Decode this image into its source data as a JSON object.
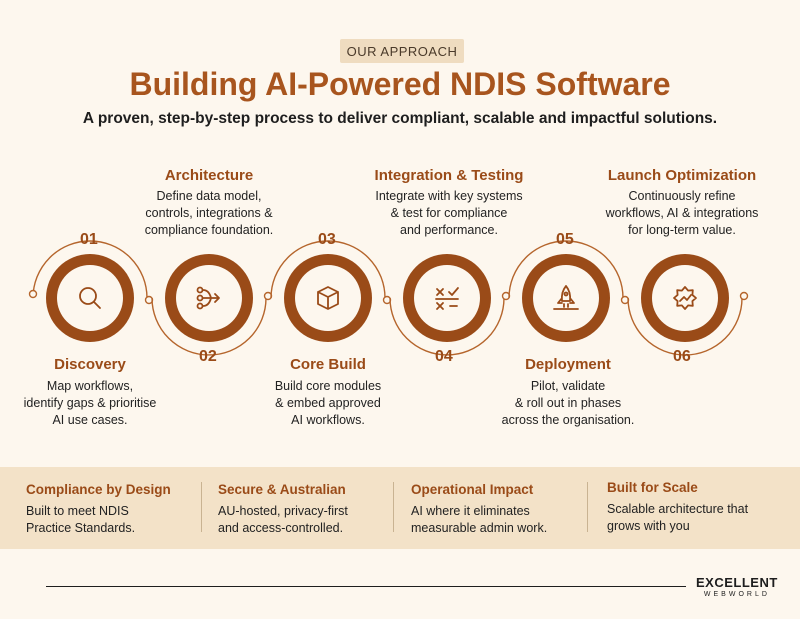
{
  "header": {
    "badge": "OUR APPROACH",
    "title": "Building AI-Powered NDIS Software",
    "subtitle": "A proven, step-by-step process to deliver compliant, scalable and impactful solutions."
  },
  "steps": [
    {
      "number": "01",
      "title": "Discovery",
      "desc": "Map workflows,\nidentify gaps & prioritise\nAI use cases.",
      "icon": "search-icon"
    },
    {
      "number": "02",
      "title": "Architecture",
      "desc": "Define data model,\ncontrols, integrations &\ncompliance foundation.",
      "icon": "flow-arrow-icon"
    },
    {
      "number": "03",
      "title": "Core Build",
      "desc": "Build core modules\n& embed approved\nAI workflows.",
      "icon": "box-icon"
    },
    {
      "number": "04",
      "title": "Integration & Testing",
      "desc": "Integrate with key systems\n& test for compliance\nand performance.",
      "icon": "test-checklist-icon"
    },
    {
      "number": "05",
      "title": "Deployment",
      "desc": "Pilot, validate\n& roll out in phases\nacross the organisation.",
      "icon": "rocket-icon"
    },
    {
      "number": "06",
      "title": "Launch Optimization",
      "desc": "Continuously refine\nworkflows, AI & integrations\nfor long-term value.",
      "icon": "optimization-gear-icon"
    }
  ],
  "features": [
    {
      "title": "Compliance by Design",
      "desc": "Built to meet NDIS\nPractice Standards."
    },
    {
      "title": "Secure & Australian",
      "desc": "AU-hosted, privacy-first\nand access-controlled."
    },
    {
      "title": "Operational Impact",
      "desc": "AI where it eliminates\nmeasurable admin work."
    },
    {
      "title": "Built for Scale",
      "desc": "Scalable architecture that\ngrows with you"
    }
  ],
  "logo": {
    "main": "EXCELLENT",
    "sub": "WEBWORLD"
  },
  "colors": {
    "accent": "#a8551e",
    "ring": "#9a4b18",
    "background": "#fdf7ee",
    "band": "#f3e2c8"
  }
}
